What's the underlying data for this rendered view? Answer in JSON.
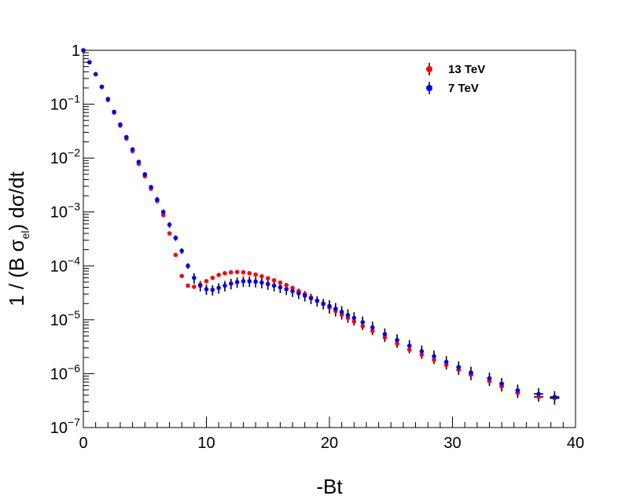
{
  "chart_data": {
    "type": "scatter",
    "title": "",
    "xlabel": "-Bt",
    "ylabel": {
      "prefix": "1 / (B σ",
      "sub": "el",
      "suffix": ")  dσ/dt"
    },
    "xlim": [
      0,
      40
    ],
    "ylim": [
      1e-07,
      1
    ],
    "yscale": "log",
    "x_ticks": [
      0,
      10,
      20,
      30,
      40
    ],
    "x_tick_labels": [
      "0",
      "10",
      "20",
      "30",
      "40"
    ],
    "y_ticks": [
      {
        "value": 1,
        "base": "1",
        "exp": ""
      },
      {
        "value": 0.1,
        "base": "10",
        "exp": "−1"
      },
      {
        "value": 0.01,
        "base": "10",
        "exp": "−2"
      },
      {
        "value": 0.001,
        "base": "10",
        "exp": "−3"
      },
      {
        "value": 0.0001,
        "base": "10",
        "exp": "−4"
      },
      {
        "value": 1e-05,
        "base": "10",
        "exp": "−5"
      },
      {
        "value": 1e-06,
        "base": "10",
        "exp": "−6"
      },
      {
        "value": 1e-07,
        "base": "10",
        "exp": "−7"
      }
    ],
    "legend_position": "top-right",
    "series": [
      {
        "name": "13 TeV",
        "color": "#ff0000",
        "x": [
          0.0,
          0.5,
          1.0,
          1.5,
          2.0,
          2.5,
          3.0,
          3.5,
          4.0,
          4.5,
          5.0,
          5.5,
          6.0,
          6.5,
          7.0,
          7.5,
          8.0,
          8.5,
          9.0,
          9.5,
          10.0,
          10.5,
          11.0,
          11.5,
          12.0,
          12.5,
          13.0,
          13.5,
          14.0,
          14.5,
          15.0,
          15.5,
          16.0,
          16.5,
          17.0,
          17.5,
          18.0,
          18.5,
          19.0,
          19.5,
          20.0,
          20.5,
          21.0,
          21.5,
          22.0,
          22.7,
          23.5,
          24.5,
          25.5,
          26.5,
          27.5,
          28.5,
          29.5,
          30.5,
          31.5,
          33.0,
          34.0,
          35.3,
          37.0,
          38.3
        ],
        "y": [
          1.0,
          0.6,
          0.36,
          0.21,
          0.12,
          0.07,
          0.04,
          0.023,
          0.0135,
          0.0078,
          0.0046,
          0.0027,
          0.0016,
          0.00088,
          0.0004,
          0.00016,
          6.5e-05,
          4.3e-05,
          4.1e-05,
          4.5e-05,
          5.2e-05,
          6e-05,
          6.8e-05,
          7.3e-05,
          7.6e-05,
          7.7e-05,
          7.6e-05,
          7.3e-05,
          6.9e-05,
          6.4e-05,
          5.9e-05,
          5.4e-05,
          4.9e-05,
          4.4e-05,
          3.9e-05,
          3.4e-05,
          3e-05,
          2.6e-05,
          2.25e-05,
          1.95e-05,
          1.7e-05,
          1.45e-05,
          1.25e-05,
          1.08e-05,
          9.3e-06,
          7.6e-06,
          6.2e-06,
          4.7e-06,
          3.6e-06,
          2.8e-06,
          2.25e-06,
          1.8e-06,
          1.45e-06,
          1.18e-06,
          9.5e-07,
          7.3e-07,
          5.8e-07,
          4.4e-07,
          3.7e-07,
          3.5e-07
        ]
      },
      {
        "name": "7 TeV",
        "color": "#0000ff",
        "x": [
          0.0,
          0.5,
          1.0,
          1.5,
          2.0,
          2.5,
          3.0,
          3.5,
          4.0,
          4.5,
          5.0,
          5.5,
          6.0,
          6.5,
          7.0,
          7.5,
          8.0,
          8.5,
          9.0,
          9.5,
          10.0,
          10.5,
          11.0,
          11.5,
          12.0,
          12.5,
          13.0,
          13.5,
          14.0,
          14.5,
          15.0,
          15.5,
          16.0,
          16.5,
          17.0,
          17.5,
          18.0,
          18.5,
          19.0,
          19.5,
          20.0,
          20.5,
          21.0,
          21.5,
          22.0,
          22.7,
          23.5,
          24.5,
          25.5,
          26.5,
          27.5,
          28.5,
          29.5,
          30.5,
          31.5,
          33.0,
          34.0,
          35.3,
          37.0,
          38.3
        ],
        "y": [
          1.0,
          0.6,
          0.36,
          0.21,
          0.125,
          0.072,
          0.042,
          0.0245,
          0.0145,
          0.0085,
          0.005,
          0.0029,
          0.0017,
          0.001,
          0.00058,
          0.00033,
          0.00019,
          0.0001,
          6e-05,
          4.3e-05,
          3.7e-05,
          3.6e-05,
          3.9e-05,
          4.3e-05,
          4.7e-05,
          5e-05,
          5.2e-05,
          5.2e-05,
          5.1e-05,
          4.9e-05,
          4.6e-05,
          4.3e-05,
          4e-05,
          3.7e-05,
          3.4e-05,
          3.1e-05,
          2.8e-05,
          2.5e-05,
          2.25e-05,
          2e-05,
          1.8e-05,
          1.6e-05,
          1.4e-05,
          1.22e-05,
          1.08e-05,
          9e-06,
          7.2e-06,
          5.4e-06,
          4.2e-06,
          3.3e-06,
          2.6e-06,
          2.1e-06,
          1.65e-06,
          1.32e-06,
          1.05e-06,
          8.2e-07,
          6.5e-07,
          4.9e-07,
          4.2e-07,
          3.7e-07
        ]
      }
    ],
    "errorbar_color": "#000000"
  }
}
